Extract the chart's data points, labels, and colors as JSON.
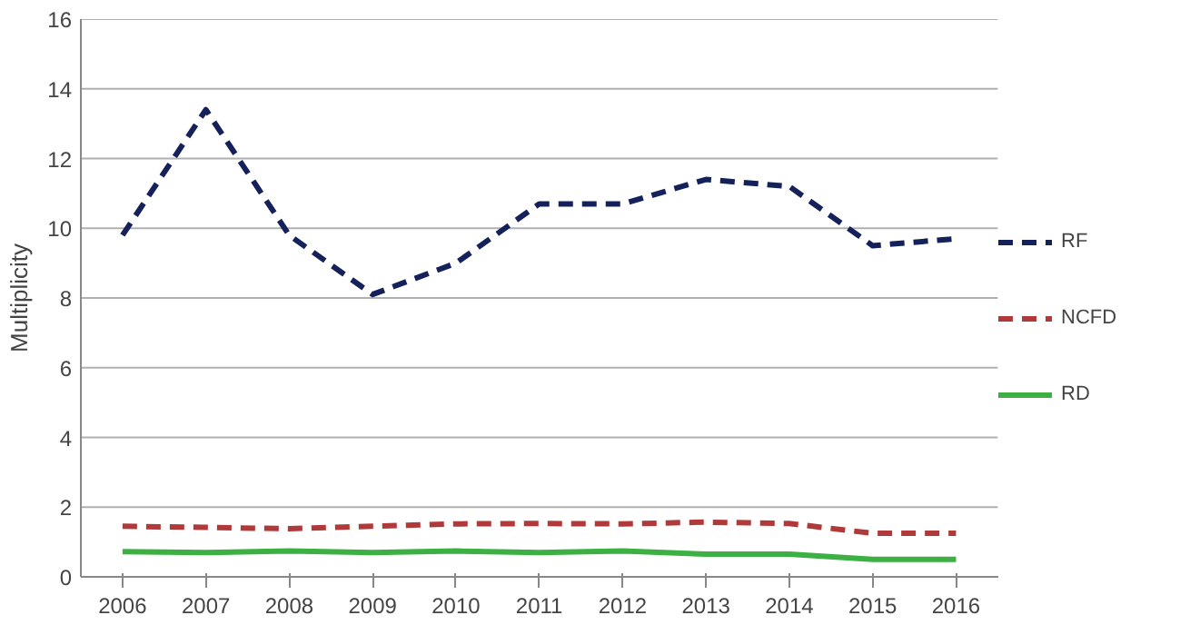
{
  "chart_data": {
    "type": "line",
    "ylabel": "Multiplicity",
    "categories": [
      "2006",
      "2007",
      "2008",
      "2009",
      "2010",
      "2011",
      "2012",
      "2013",
      "2014",
      "2015",
      "2016"
    ],
    "series": [
      {
        "name": "RF",
        "color": "#14215a",
        "line_style": "dashed",
        "values": [
          9.8,
          13.4,
          9.8,
          8.1,
          9.0,
          10.7,
          10.7,
          11.4,
          11.2,
          9.5,
          9.7
        ]
      },
      {
        "name": "NCFD",
        "color": "#b03a3a",
        "line_style": "dashed",
        "values": [
          1.45,
          1.42,
          1.38,
          1.45,
          1.52,
          1.53,
          1.52,
          1.57,
          1.53,
          1.25,
          1.25
        ]
      },
      {
        "name": "RD",
        "color": "#3cb043",
        "line_style": "solid",
        "values": [
          0.72,
          0.7,
          0.74,
          0.7,
          0.74,
          0.7,
          0.74,
          0.65,
          0.65,
          0.5,
          0.5
        ]
      }
    ],
    "ylim": [
      0,
      16
    ],
    "yticks": [
      0,
      2,
      4,
      6,
      8,
      10,
      12,
      14,
      16
    ],
    "grid": "y",
    "legend": "right",
    "marker": "none"
  }
}
